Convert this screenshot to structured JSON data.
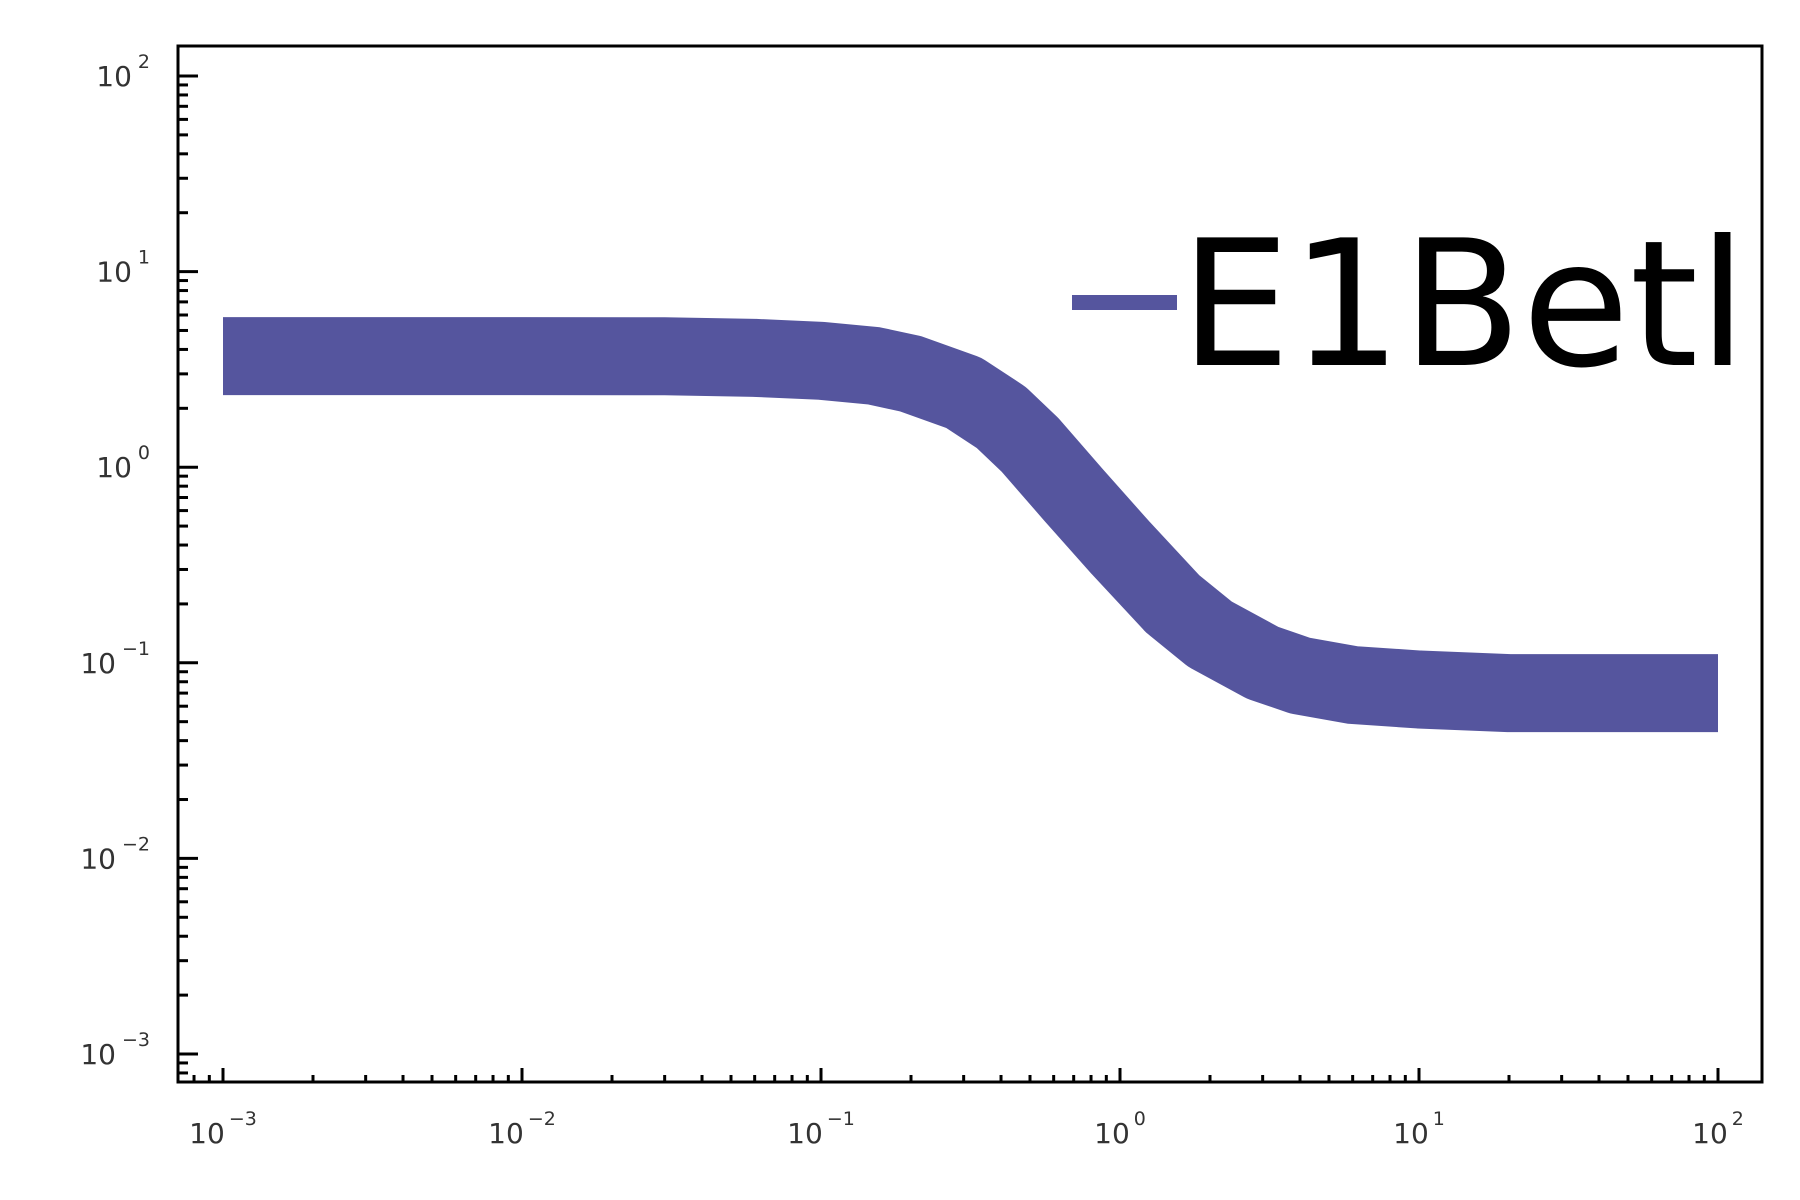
{
  "chart_data": {
    "type": "line",
    "title": "",
    "xlabel": "",
    "ylabel": "",
    "xscale": "log",
    "yscale": "log",
    "xlim": [
      0.001,
      100
    ],
    "ylim": [
      0.001,
      100
    ],
    "grid": false,
    "legend_position": "top-right",
    "x_ticks": [
      {
        "base": "10",
        "exp": "−3"
      },
      {
        "base": "10",
        "exp": "−2"
      },
      {
        "base": "10",
        "exp": "−1"
      },
      {
        "base": "10",
        "exp": "0"
      },
      {
        "base": "10",
        "exp": "1"
      },
      {
        "base": "10",
        "exp": "2"
      }
    ],
    "y_ticks": [
      {
        "base": "10",
        "exp": "−3"
      },
      {
        "base": "10",
        "exp": "−2"
      },
      {
        "base": "10",
        "exp": "−1"
      },
      {
        "base": "10",
        "exp": "0"
      },
      {
        "base": "10",
        "exp": "1"
      },
      {
        "base": "10",
        "exp": "2"
      }
    ],
    "series": [
      {
        "name": "E1Betl",
        "color": "#55559e",
        "x": [
          0.001,
          0.003,
          0.01,
          0.03,
          0.06,
          0.1,
          0.15,
          0.2,
          0.3,
          0.4,
          0.5,
          0.7,
          1,
          1.5,
          2,
          3,
          4,
          6,
          10,
          20,
          50,
          100
        ],
        "y": [
          3.7,
          3.7,
          3.7,
          3.69,
          3.62,
          3.5,
          3.3,
          3.0,
          2.4,
          1.8,
          1.3,
          0.72,
          0.39,
          0.2,
          0.14,
          0.1,
          0.086,
          0.077,
          0.073,
          0.07,
          0.07,
          0.07
        ]
      }
    ]
  }
}
